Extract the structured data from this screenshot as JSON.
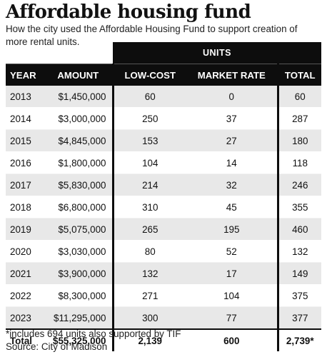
{
  "chart_data": {
    "type": "table",
    "title": "Affordable housing fund",
    "subtitle": "How the city used the Affordable Housing Fund to support creation of more rental units.",
    "group_header": "UNITS",
    "columns": [
      "YEAR",
      "AMOUNT",
      "LOW-COST",
      "MARKET RATE",
      "TOTAL"
    ],
    "rows": [
      {
        "year": "2013",
        "amount": "$1,450,000",
        "low_cost": "60",
        "market_rate": "0",
        "total": "60"
      },
      {
        "year": "2014",
        "amount": "$3,000,000",
        "low_cost": "250",
        "market_rate": "37",
        "total": "287"
      },
      {
        "year": "2015",
        "amount": "$4,845,000",
        "low_cost": "153",
        "market_rate": "27",
        "total": "180"
      },
      {
        "year": "2016",
        "amount": "$1,800,000",
        "low_cost": "104",
        "market_rate": "14",
        "total": "118"
      },
      {
        "year": "2017",
        "amount": "$5,830,000",
        "low_cost": "214",
        "market_rate": "32",
        "total": "246"
      },
      {
        "year": "2018",
        "amount": "$6,800,000",
        "low_cost": "310",
        "market_rate": "45",
        "total": "355"
      },
      {
        "year": "2019",
        "amount": "$5,075,000",
        "low_cost": "265",
        "market_rate": "195",
        "total": "460"
      },
      {
        "year": "2020",
        "amount": "$3,030,000",
        "low_cost": "80",
        "market_rate": "52",
        "total": "132"
      },
      {
        "year": "2021",
        "amount": "$3,900,000",
        "low_cost": "132",
        "market_rate": "17",
        "total": "149"
      },
      {
        "year": "2022",
        "amount": "$8,300,000",
        "low_cost": "271",
        "market_rate": "104",
        "total": "375"
      },
      {
        "year": "2023",
        "amount": "$11,295,000",
        "low_cost": "300",
        "market_rate": "77",
        "total": "377"
      }
    ],
    "totals": {
      "label": "Total",
      "amount": "$55,325,000",
      "low_cost": "2,139",
      "market_rate": "600",
      "total": "2,739*"
    },
    "footnote": "*includes 694 units also supported by TIF",
    "source": "Source: City of Madison"
  }
}
